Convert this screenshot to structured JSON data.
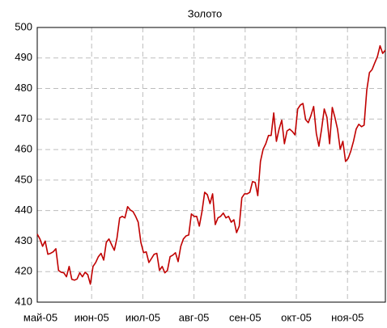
{
  "chart_data": {
    "type": "line",
    "title": "Золото",
    "xticks": [
      "май-05",
      "июн-05",
      "июл-05",
      "авг-05",
      "сен-05",
      "окт-05",
      "ноя-05"
    ],
    "ylim": [
      410,
      500
    ],
    "yticks": [
      410,
      420,
      430,
      440,
      450,
      460,
      470,
      480,
      490,
      500
    ],
    "grid": true,
    "series": [
      {
        "name": "Золото",
        "color": "#c00000",
        "values": [
          432.3,
          430.7,
          428.3,
          430,
          425.7,
          426,
          426.5,
          427.5,
          420.4,
          419.8,
          419.6,
          418.3,
          421.7,
          417.5,
          417.2,
          417.6,
          419.6,
          418.3,
          419.8,
          419,
          415.9,
          421.7,
          423,
          424.9,
          426,
          423.8,
          429.6,
          430.7,
          428.8,
          427,
          431,
          437.6,
          438.1,
          437.6,
          441.3,
          440.2,
          439.7,
          438.1,
          436.2,
          429.6,
          426.2,
          426.5,
          423,
          424.3,
          425.7,
          426,
          420.4,
          421.7,
          419.6,
          420.4,
          424.9,
          425.4,
          426.2,
          423.3,
          428.3,
          430.7,
          431.7,
          432,
          438.9,
          438.1,
          438.1,
          434.9,
          439.7,
          446,
          445.2,
          442.3,
          445.5,
          435.4,
          437.6,
          438.1,
          439.2,
          437.6,
          438.1,
          436.2,
          437,
          432.8,
          434.9,
          444.2,
          445.5,
          445.5,
          446,
          449.5,
          449.2,
          444.9,
          456.1,
          460.1,
          461.9,
          464.6,
          464.6,
          472,
          462.7,
          466.7,
          469.6,
          461.9,
          466.1,
          466.7,
          465.9,
          464.8,
          473.3,
          474.6,
          475.1,
          469.8,
          468.8,
          471.2,
          474.1,
          465.3,
          461.1,
          466.7,
          473.3,
          470.6,
          461.9,
          473.8,
          470.6,
          466.7,
          460.1,
          462.7,
          456.1,
          457.1,
          459.5,
          462.7,
          466.7,
          468.3,
          467.5,
          468,
          479.4,
          485.2,
          486.2,
          488.4,
          490.5,
          494,
          491.5,
          492.6
        ]
      }
    ]
  }
}
